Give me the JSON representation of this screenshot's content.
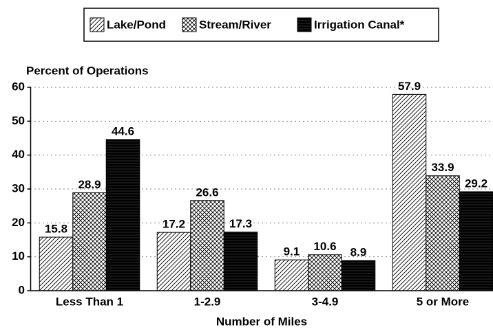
{
  "chart_data": {
    "type": "bar",
    "y_label": "Percent of Operations",
    "x_label": "Number of Miles",
    "categories": [
      "Less Than 1",
      "1-2.9",
      "3-4.9",
      "5 or More"
    ],
    "series": [
      {
        "name": "Lake/Pond",
        "color": "#000000",
        "pattern": "hatch",
        "values": [
          15.8,
          17.2,
          9.1,
          57.9
        ]
      },
      {
        "name": "Stream/River",
        "color": "#000000",
        "pattern": "crosshatch",
        "values": [
          28.9,
          26.6,
          10.6,
          33.9
        ]
      },
      {
        "name": "Irrigation Canal*",
        "color": "#000000",
        "pattern": "solid",
        "values": [
          44.6,
          17.3,
          8.9,
          29.2
        ]
      }
    ],
    "ylim": [
      0,
      60
    ],
    "yticks": [
      0,
      10,
      20,
      30,
      40,
      50,
      60
    ],
    "grid": true,
    "legend": "top"
  }
}
